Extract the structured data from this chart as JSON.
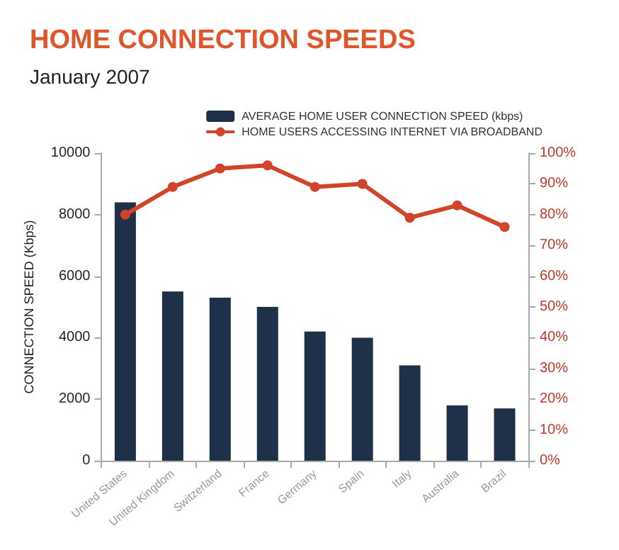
{
  "chart_data": {
    "type": "bar",
    "title": "HOME CONNECTION SPEEDS",
    "subtitle": "January 2007",
    "ylabel": "CONNECTION SPEED (Kbps)",
    "categories": [
      "United States",
      "United Kingdom",
      "Switzerland",
      "France",
      "Germany",
      "Spain",
      "Italy",
      "Australia",
      "Brazil"
    ],
    "series": [
      {
        "name": "AVERAGE HOME USER CONNECTION SPEED (kbps)",
        "color": "#1f3049",
        "values": [
          8400,
          5500,
          5300,
          5000,
          4200,
          4000,
          3100,
          1800,
          1700
        ]
      },
      {
        "name": "HOME USERS ACCESSING INTERNET VIA BROADBAND",
        "type": "line",
        "axis": "y2",
        "color": "#d0452a",
        "marker": "circle",
        "values": [
          80,
          89,
          95,
          96,
          89,
          90,
          79,
          83,
          76
        ]
      }
    ],
    "ylim": [
      0,
      10000
    ],
    "yticks": [
      0,
      2000,
      4000,
      6000,
      8000,
      10000
    ],
    "y2lim": [
      0,
      100
    ],
    "y2ticks": [
      {
        "value": 0,
        "label": "0%"
      },
      {
        "value": 10,
        "label": "10%"
      },
      {
        "value": 20,
        "label": "20%"
      },
      {
        "value": 30,
        "label": "30%"
      },
      {
        "value": 40,
        "label": "40%"
      },
      {
        "value": 50,
        "label": "50%"
      },
      {
        "value": 60,
        "label": "60%"
      },
      {
        "value": 70,
        "label": "70%"
      },
      {
        "value": 80,
        "label": "80%"
      },
      {
        "value": 90,
        "label": "90%"
      },
      {
        "value": 100,
        "label": "100%"
      }
    ],
    "grid": false,
    "legend": "top right"
  }
}
